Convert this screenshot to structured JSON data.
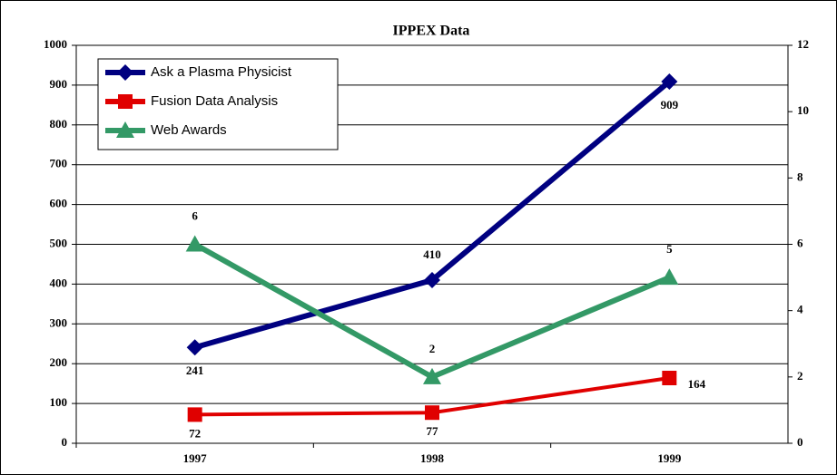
{
  "chart_data": {
    "type": "line",
    "title": "IPPEX Data",
    "categories": [
      "1997",
      "1998",
      "1999"
    ],
    "series": [
      {
        "name": "Ask a Plasma Physicist",
        "color": "#000080",
        "marker": "diamond",
        "values": [
          241,
          410,
          909
        ]
      },
      {
        "name": "Fusion Data Analysis",
        "color": "#e00000",
        "marker": "square",
        "values": [
          72,
          77,
          164
        ]
      },
      {
        "name": "Web Awards",
        "color": "#339966",
        "marker": "triangle",
        "axis": "y2",
        "values": [
          6,
          2,
          5
        ]
      }
    ],
    "ylim": [
      0,
      1000
    ],
    "yticks": [
      0,
      100,
      200,
      300,
      400,
      500,
      600,
      700,
      800,
      900,
      1000
    ],
    "y2lim": [
      0,
      12
    ],
    "y2ticks": [
      0,
      2,
      4,
      6,
      8,
      10,
      12
    ],
    "grid": true,
    "legend": "upper left"
  }
}
